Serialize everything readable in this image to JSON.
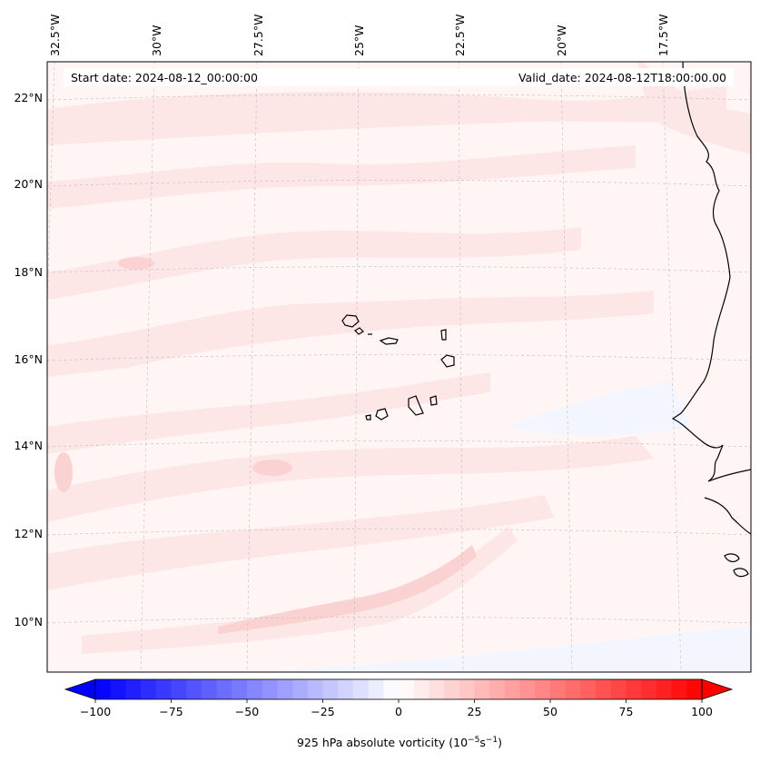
{
  "map": {
    "start_label": "Start date: 2024-08-12_00:00:00",
    "valid_label": "Valid_date: 2024-08-12T18:00:00.00",
    "lon_labels": [
      "32.5°W",
      "30°W",
      "27.5°W",
      "25°W",
      "22.5°W",
      "20°W",
      "17.5°W"
    ],
    "lat_labels": [
      "22°N",
      "20°N",
      "18°N",
      "16°N",
      "14°N",
      "12°N",
      "10°N"
    ],
    "field_colors": {
      "light_pink": "#fde6e6",
      "pink": "#fbd2d2",
      "pale_pink": "#fff5f5",
      "pale_blue": "#f3f6ff",
      "coast": "#000000"
    }
  },
  "colorbar": {
    "label_prefix": "925 hPa absolute vorticity (10",
    "label_exp1": "−5",
    "label_mid": "s",
    "label_exp2": "−1",
    "label_suffix": ")",
    "tick_labels": [
      "−100",
      "−75",
      "−50",
      "−25",
      "0",
      "25",
      "50",
      "75",
      "100"
    ],
    "vmin": -100,
    "vmax": 100,
    "step": 5,
    "extend": "both",
    "colormap": "bwr"
  }
}
